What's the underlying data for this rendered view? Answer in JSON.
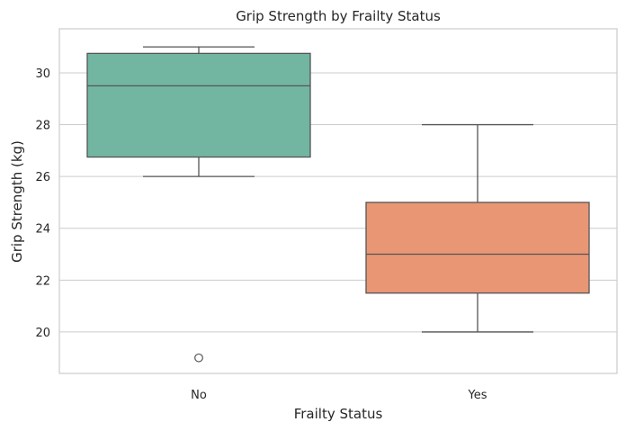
{
  "chart_data": {
    "type": "box",
    "title": "Grip Strength by Frailty Status",
    "xlabel": "Frailty Status",
    "ylabel": "Grip Strength (kg)",
    "ylim": [
      18.4,
      31.7
    ],
    "yticks": [
      20,
      22,
      24,
      26,
      28,
      30
    ],
    "grid": "horizontal",
    "categories": [
      "No",
      "Yes"
    ],
    "boxes": [
      {
        "category": "No",
        "whisker_low": 26,
        "q1": 26.75,
        "median": 29.5,
        "q3": 30.75,
        "whisker_high": 31,
        "outliers": [
          19
        ],
        "color": "#72b6a1"
      },
      {
        "category": "Yes",
        "whisker_low": 20,
        "q1": 21.5,
        "median": 23,
        "q3": 25,
        "whisker_high": 28,
        "outliers": [],
        "color": "#e99675"
      }
    ]
  }
}
